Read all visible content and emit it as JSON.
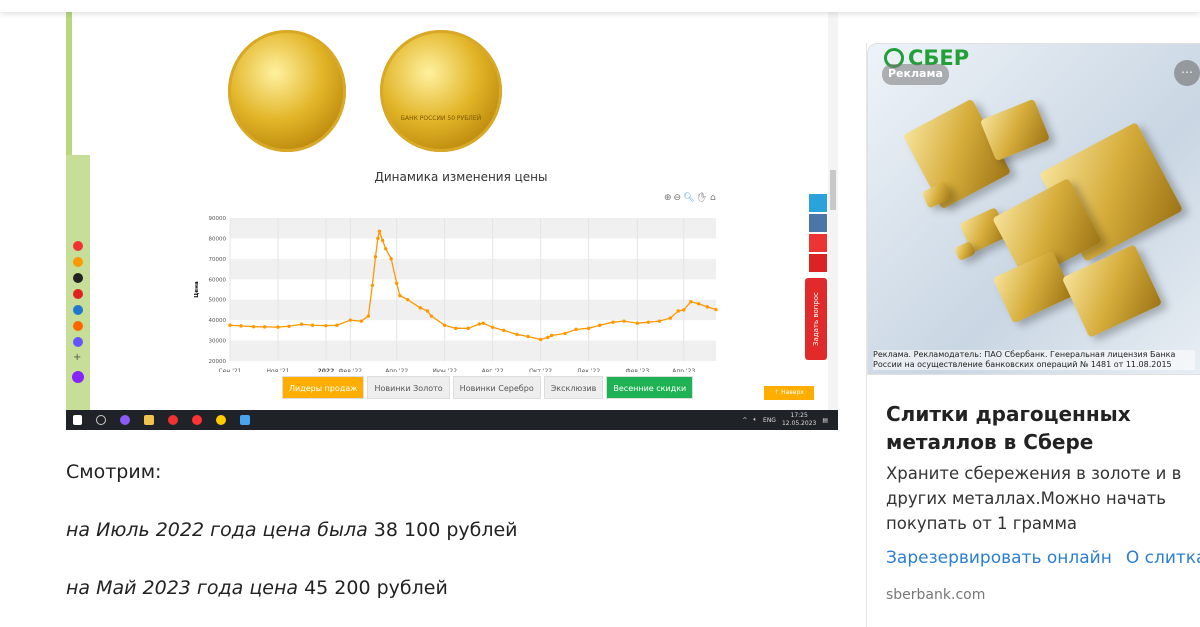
{
  "embedded_screenshot": {
    "coins": {
      "obverse": "",
      "reverse": "БАНК РОССИИ 50 РУБЛЕЙ"
    },
    "chart_title": "Динамика изменения цены",
    "tabs": [
      {
        "label": "Лидеры продаж",
        "active": true
      },
      {
        "label": "Новинки Золото"
      },
      {
        "label": "Новинки Серебро"
      },
      {
        "label": "Эксклюзив"
      },
      {
        "label": "Весенние скидки",
        "color": "#1fb254"
      }
    ],
    "next_button": "↑ Наверх",
    "ask_button": "Задать вопрос",
    "taskbar": {
      "lang": "ENG",
      "time": "17:25",
      "date": "12.05.2023"
    }
  },
  "chart_data": {
    "type": "line",
    "title": "Динамика изменения цены",
    "ylabel": "Цена",
    "ylim": [
      20000,
      90000
    ],
    "yticks": [
      "90000",
      "80000",
      "70000",
      "60000",
      "50000",
      "40000",
      "30000",
      "20000"
    ],
    "xticks": [
      {
        "label": "Сен '21",
        "date": "2021-09-01"
      },
      {
        "label": "Ноя '21",
        "date": "2021-11-01"
      },
      {
        "label": "2022",
        "date": "2022-01-01",
        "bold": true
      },
      {
        "label": "Фев '22",
        "date": "2022-02-01"
      },
      {
        "label": "Апр '22",
        "date": "2022-04-01"
      },
      {
        "label": "Июн '22",
        "date": "2022-06-01"
      },
      {
        "label": "Авг '22",
        "date": "2022-08-01"
      },
      {
        "label": "Окт '22",
        "date": "2022-10-01"
      },
      {
        "label": "Дек '22",
        "date": "2022-12-01"
      },
      {
        "label": "Фев '23",
        "date": "2023-02-01"
      },
      {
        "label": "Апр '23",
        "date": "2023-04-01"
      }
    ],
    "xlim": [
      "2021-09-01",
      "2023-05-12"
    ],
    "color": "#ff9800",
    "grid": true,
    "points": [
      [
        "2021-09-01",
        37500
      ],
      [
        "2021-09-15",
        37200
      ],
      [
        "2021-10-01",
        36800
      ],
      [
        "2021-10-15",
        36700
      ],
      [
        "2021-11-01",
        36600
      ],
      [
        "2021-11-15",
        37000
      ],
      [
        "2021-12-01",
        38000
      ],
      [
        "2021-12-15",
        37500
      ],
      [
        "2022-01-01",
        37300
      ],
      [
        "2022-01-15",
        37500
      ],
      [
        "2022-02-01",
        40000
      ],
      [
        "2022-02-15",
        39500
      ],
      [
        "2022-02-24",
        42000
      ],
      [
        "2022-03-01",
        57000
      ],
      [
        "2022-03-05",
        71000
      ],
      [
        "2022-03-08",
        80000
      ],
      [
        "2022-03-10",
        83500
      ],
      [
        "2022-03-14",
        79000
      ],
      [
        "2022-03-18",
        75000
      ],
      [
        "2022-03-25",
        70000
      ],
      [
        "2022-04-01",
        58000
      ],
      [
        "2022-04-05",
        52000
      ],
      [
        "2022-04-15",
        50000
      ],
      [
        "2022-05-01",
        46000
      ],
      [
        "2022-05-10",
        44500
      ],
      [
        "2022-05-15",
        42000
      ],
      [
        "2022-06-01",
        37500
      ],
      [
        "2022-06-15",
        36000
      ],
      [
        "2022-07-01",
        36000
      ],
      [
        "2022-07-15",
        38100
      ],
      [
        "2022-07-20",
        38500
      ],
      [
        "2022-08-01",
        36500
      ],
      [
        "2022-08-15",
        35000
      ],
      [
        "2022-09-01",
        33000
      ],
      [
        "2022-09-15",
        32000
      ],
      [
        "2022-10-01",
        30500
      ],
      [
        "2022-10-10",
        31500
      ],
      [
        "2022-10-15",
        32500
      ],
      [
        "2022-11-01",
        33500
      ],
      [
        "2022-11-15",
        35500
      ],
      [
        "2022-12-01",
        36000
      ],
      [
        "2022-12-15",
        37500
      ],
      [
        "2023-01-01",
        39000
      ],
      [
        "2023-01-15",
        39500
      ],
      [
        "2023-02-01",
        38500
      ],
      [
        "2023-02-15",
        39000
      ],
      [
        "2023-03-01",
        39500
      ],
      [
        "2023-03-15",
        41000
      ],
      [
        "2023-03-25",
        44500
      ],
      [
        "2023-04-01",
        45000
      ],
      [
        "2023-04-10",
        49000
      ],
      [
        "2023-04-20",
        48000
      ],
      [
        "2023-05-01",
        46500
      ],
      [
        "2023-05-12",
        45200
      ]
    ]
  },
  "article": {
    "line1": "Смотрим:",
    "line2_italic": "на Июль 2022 года цена была",
    "line2_value": "38 100 рублей",
    "line3_italic": "на Май 2023 года цена",
    "line3_value": "45 200 рублей"
  },
  "ad": {
    "brand": "СБЕР",
    "badge": "Реклама",
    "more": "⋯",
    "fine_print": "Реклама. Рекламодатель: ПАО Сбербанк. Генеральная лицензия Банка России на осуществление банковских операций № 1481 от 11.08.2015",
    "title": "Слитки драгоценных металлов в Сбере",
    "description": "Храните сбережения в золоте и в других металлах.Можно начать покупать от 1 грамма",
    "links": [
      "Зарезервировать онлайн",
      "О слитках"
    ],
    "domain": "sberbank.com"
  }
}
